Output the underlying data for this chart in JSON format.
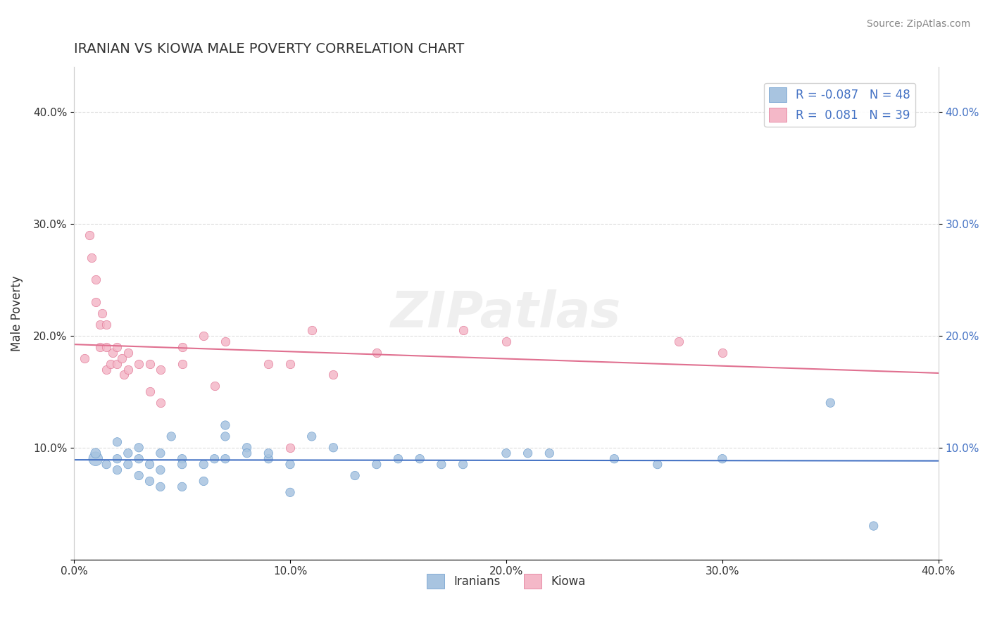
{
  "title": "IRANIAN VS KIOWA MALE POVERTY CORRELATION CHART",
  "source": "Source: ZipAtlas.com",
  "xlabel": "",
  "ylabel": "Male Poverty",
  "xlim": [
    0.0,
    0.4
  ],
  "ylim": [
    0.0,
    0.44
  ],
  "x_ticks": [
    0.0,
    0.1,
    0.2,
    0.3,
    0.4
  ],
  "x_tick_labels": [
    "0.0%",
    "10.0%",
    "20.0%",
    "30.0%",
    "40.0%"
  ],
  "y_ticks": [
    0.0,
    0.1,
    0.2,
    0.3,
    0.4
  ],
  "y_tick_labels": [
    "",
    "10.0%",
    "20.0%",
    "30.0%",
    "40.0%"
  ],
  "iranian_color": "#a8c4e0",
  "iranian_edge": "#6699cc",
  "kiowa_color": "#f4b8c8",
  "kiowa_edge": "#e07090",
  "line_iranian": "#4472c4",
  "line_kiowa": "#e07090",
  "R_iranian": -0.087,
  "N_iranian": 48,
  "R_kiowa": 0.081,
  "N_kiowa": 39,
  "background_color": "#ffffff",
  "grid_color": "#dddddd",
  "watermark": "ZIPatlas",
  "iranian_x": [
    0.01,
    0.01,
    0.015,
    0.02,
    0.02,
    0.02,
    0.025,
    0.025,
    0.03,
    0.03,
    0.03,
    0.035,
    0.035,
    0.04,
    0.04,
    0.04,
    0.045,
    0.05,
    0.05,
    0.05,
    0.06,
    0.06,
    0.065,
    0.07,
    0.07,
    0.07,
    0.08,
    0.08,
    0.09,
    0.09,
    0.1,
    0.1,
    0.11,
    0.12,
    0.13,
    0.14,
    0.15,
    0.16,
    0.17,
    0.18,
    0.2,
    0.21,
    0.22,
    0.25,
    0.27,
    0.3,
    0.35,
    0.37
  ],
  "iranian_y": [
    0.09,
    0.095,
    0.085,
    0.09,
    0.105,
    0.08,
    0.095,
    0.085,
    0.09,
    0.1,
    0.075,
    0.085,
    0.07,
    0.08,
    0.095,
    0.065,
    0.11,
    0.09,
    0.085,
    0.065,
    0.085,
    0.07,
    0.09,
    0.12,
    0.11,
    0.09,
    0.1,
    0.095,
    0.09,
    0.095,
    0.085,
    0.06,
    0.11,
    0.1,
    0.075,
    0.085,
    0.09,
    0.09,
    0.085,
    0.085,
    0.095,
    0.095,
    0.095,
    0.09,
    0.085,
    0.09,
    0.14,
    0.03
  ],
  "iranian_sizes": [
    200,
    100,
    80,
    80,
    80,
    80,
    80,
    80,
    80,
    80,
    80,
    80,
    80,
    80,
    80,
    80,
    80,
    80,
    80,
    80,
    80,
    80,
    80,
    80,
    80,
    80,
    80,
    80,
    80,
    80,
    80,
    80,
    80,
    80,
    80,
    80,
    80,
    80,
    80,
    80,
    80,
    80,
    80,
    80,
    80,
    80,
    80,
    80
  ],
  "kiowa_x": [
    0.005,
    0.007,
    0.008,
    0.01,
    0.01,
    0.012,
    0.012,
    0.013,
    0.015,
    0.015,
    0.015,
    0.017,
    0.018,
    0.02,
    0.02,
    0.022,
    0.023,
    0.025,
    0.025,
    0.03,
    0.035,
    0.035,
    0.04,
    0.04,
    0.05,
    0.05,
    0.06,
    0.065,
    0.07,
    0.09,
    0.1,
    0.1,
    0.11,
    0.12,
    0.14,
    0.18,
    0.2,
    0.28,
    0.3
  ],
  "kiowa_y": [
    0.18,
    0.29,
    0.27,
    0.23,
    0.25,
    0.19,
    0.21,
    0.22,
    0.17,
    0.19,
    0.21,
    0.175,
    0.185,
    0.175,
    0.19,
    0.18,
    0.165,
    0.17,
    0.185,
    0.175,
    0.175,
    0.15,
    0.17,
    0.14,
    0.175,
    0.19,
    0.2,
    0.155,
    0.195,
    0.175,
    0.1,
    0.175,
    0.205,
    0.165,
    0.185,
    0.205,
    0.195,
    0.195,
    0.185
  ]
}
